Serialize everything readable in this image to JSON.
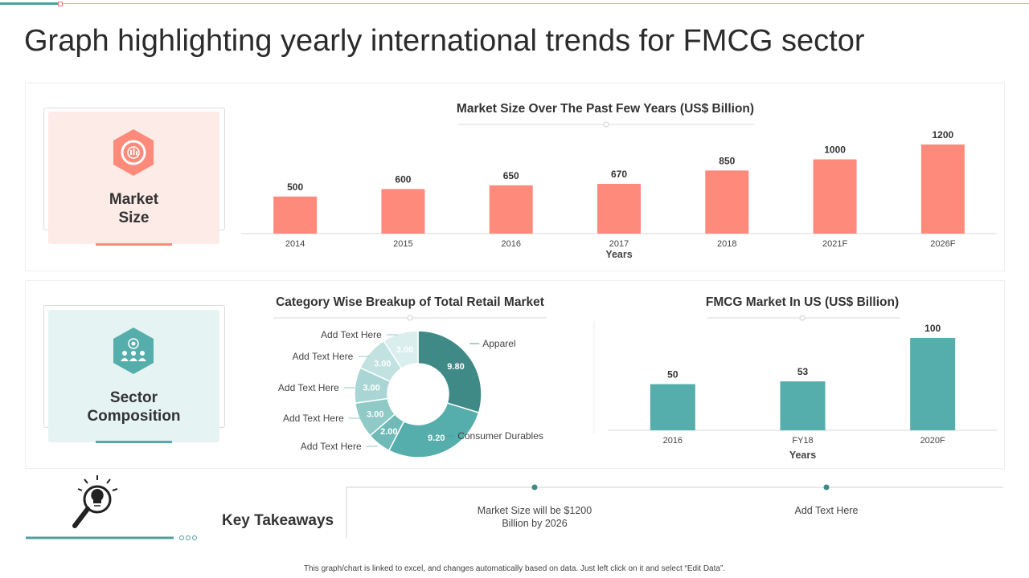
{
  "page": {
    "title": "Graph highlighting yearly international trends for FMCG sector",
    "footer": "This graph/chart is linked to excel, and changes automatically based on data. Just left click on it and select “Edit Data”."
  },
  "cards": {
    "market_size": {
      "line1": "Market",
      "line2": "Size",
      "icon": "target-chart-icon"
    },
    "sector": {
      "line1": "Sector",
      "line2": "Composition",
      "icon": "team-target-icon"
    }
  },
  "takeaways": {
    "label": "Key Takeaways",
    "icon": "lightbulb-magnifier-icon",
    "item1_line1": "Market Size will be $1200",
    "item1_line2": "Billion  by 2026",
    "item2": "Add Text Here"
  },
  "colors": {
    "salmon": "#fd8a7b",
    "teal": "#55aeab",
    "tealdark": "#3f8a86",
    "pinkbg": "#fdebe8",
    "tealbg": "#e6f3f3"
  },
  "chart_data": [
    {
      "type": "bar",
      "title": "Market Size Over The Past Few Years (US$ Billion)",
      "categories": [
        "2014",
        "2015",
        "2016",
        "2017",
        "2018",
        "2021F",
        "2026F"
      ],
      "values": [
        500,
        600,
        650,
        670,
        850,
        1000,
        1200
      ],
      "xlabel": "Years",
      "ylabel": "",
      "ylim": [
        0,
        1200
      ]
    },
    {
      "type": "pie",
      "title": "Category Wise Breakup of Total Retail Market",
      "slices": [
        {
          "label": "Apparel",
          "value": 9.8,
          "text": "9.80"
        },
        {
          "label": "Consumer Durables",
          "value": 9.2,
          "text": "9.20"
        },
        {
          "label": "Add Text Here",
          "value": 2.0,
          "text": "2.00"
        },
        {
          "label": "Add Text Here",
          "value": 3.0,
          "text": "3.00"
        },
        {
          "label": "Add Text Here",
          "value": 3.0,
          "text": "3.00"
        },
        {
          "label": "Add Text Here",
          "value": 3.0,
          "text": "3.00"
        },
        {
          "label": "Add Text Here",
          "value": 3.0,
          "text": "3.00"
        }
      ]
    },
    {
      "type": "bar",
      "title": "FMCG Market In US (US$ Billion)",
      "categories": [
        "2016",
        "FY18",
        "2020F"
      ],
      "values": [
        50,
        53,
        100
      ],
      "xlabel": "Years",
      "ylabel": "",
      "ylim": [
        0,
        100
      ]
    }
  ]
}
